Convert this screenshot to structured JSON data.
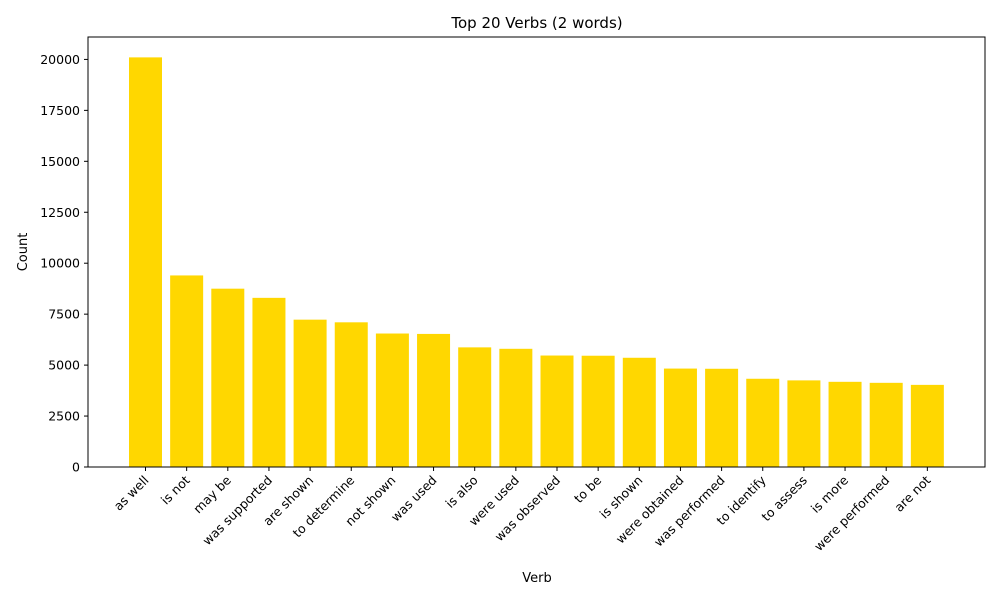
{
  "chart_data": {
    "type": "bar",
    "title": "Top 20 Verbs (2 words)",
    "xlabel": "Verb",
    "ylabel": "Count",
    "ylim": [
      0,
      21100
    ],
    "yticks": [
      0,
      2500,
      5000,
      7500,
      10000,
      12500,
      15000,
      17500,
      20000
    ],
    "bar_color": "#ffd700",
    "grid": false,
    "categories": [
      "as well",
      "is not",
      "may be",
      "was supported",
      "are shown",
      "to determine",
      "not shown",
      "was used",
      "is also",
      "were used",
      "was observed",
      "to be",
      "is shown",
      "were obtained",
      "was performed",
      "to identify",
      "to assess",
      "is more",
      "were performed",
      "are not"
    ],
    "values": [
      20100,
      9400,
      8750,
      8300,
      7230,
      7100,
      6550,
      6530,
      5870,
      5800,
      5470,
      5460,
      5360,
      4830,
      4820,
      4330,
      4250,
      4180,
      4130,
      4030
    ]
  }
}
